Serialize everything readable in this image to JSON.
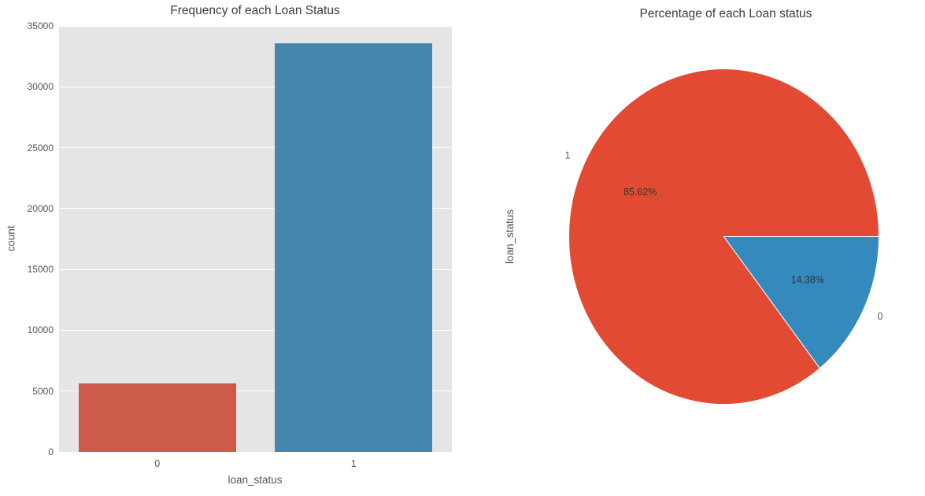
{
  "figure": {
    "background": "#ffffff",
    "text_colors": {
      "title": "#3c3c3c",
      "ticks_labels": "#555555",
      "pie_pct": "#333333"
    }
  },
  "chart_data": [
    {
      "type": "bar",
      "title": "Frequency of each Loan Status",
      "xlabel": "loan_status",
      "ylabel": "count",
      "categories": [
        "0",
        "1"
      ],
      "values": [
        5634,
        33546
      ],
      "bar_colors": [
        "#cd5b4a",
        "#4586ad"
      ],
      "ylim": [
        0,
        35000
      ],
      "yticks": [
        0,
        5000,
        10000,
        15000,
        20000,
        25000,
        30000,
        35000
      ],
      "plot_bg": "#e5e5e5",
      "grid_color": "#ffffff",
      "grid": "horizontal",
      "bar_width_fraction": 0.8
    },
    {
      "type": "pie",
      "title": "Percentage of each Loan status",
      "ylabel": "loan_status",
      "slices": [
        {
          "label": "1",
          "value_pct": 85.62,
          "pct_label": "85.62%",
          "color": "#e24a33"
        },
        {
          "label": "0",
          "value_pct": 14.38,
          "pct_label": "14.38%",
          "color": "#348abd"
        }
      ],
      "start_angle": 0,
      "counterclock": true,
      "label_distance": 1.1,
      "pct_distance": 0.6,
      "wedge_edge_color": "#ffffff"
    }
  ]
}
